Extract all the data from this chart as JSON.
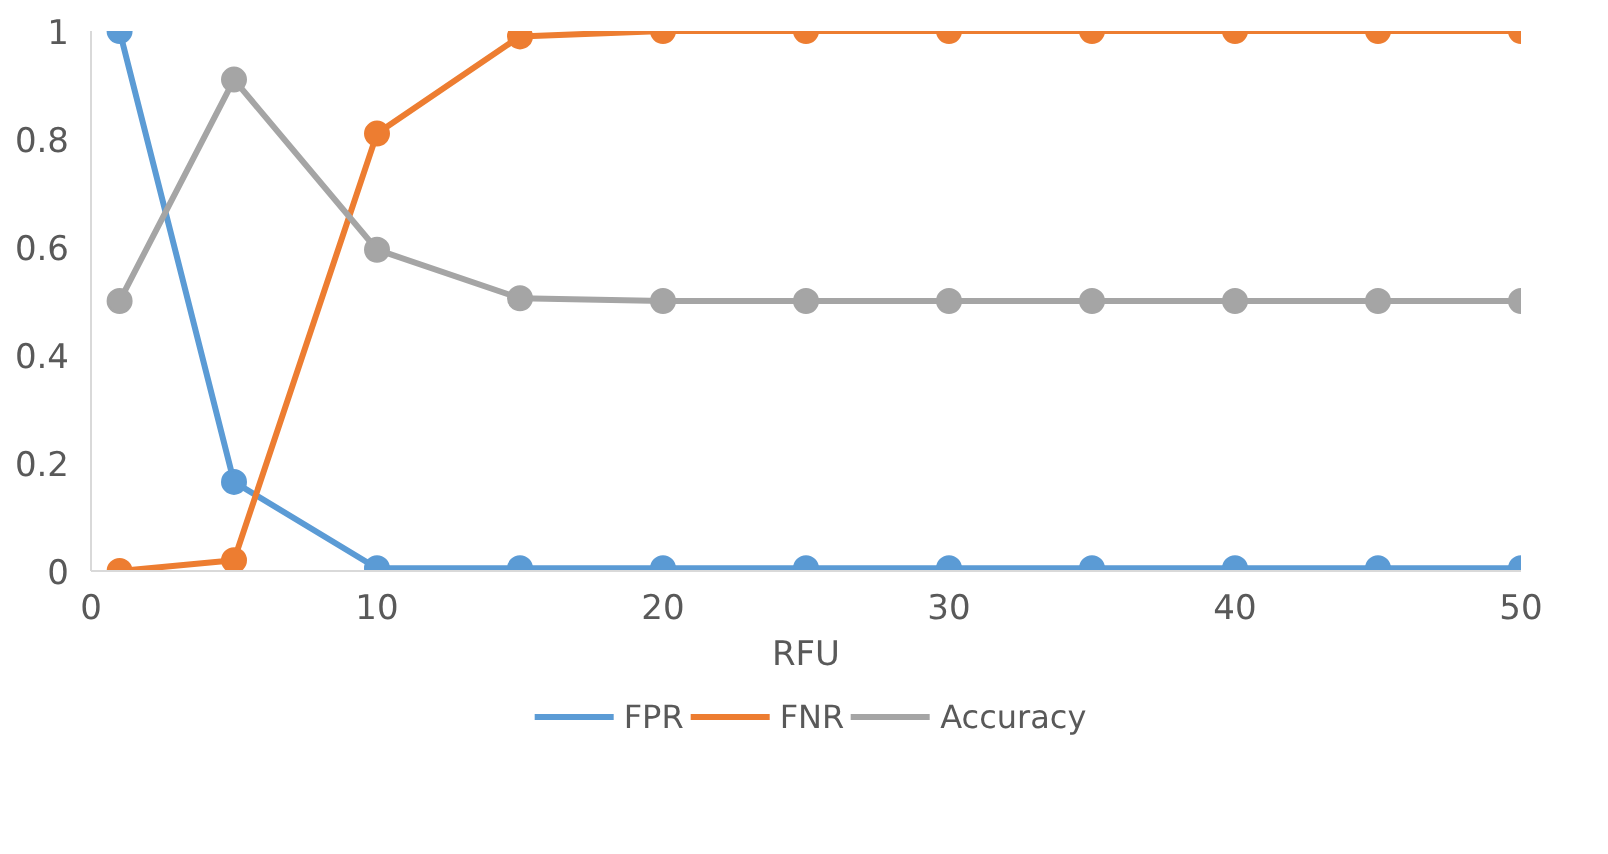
{
  "chart_data": {
    "type": "line",
    "xlabel": "RFU",
    "x": [
      1,
      5,
      10,
      15,
      20,
      25,
      30,
      35,
      40,
      45,
      50
    ],
    "series": [
      {
        "name": "FPR",
        "color": "#5b9bd5",
        "values": [
          1,
          0.165,
          0.005,
          0.005,
          0.005,
          0.005,
          0.005,
          0.005,
          0.005,
          0.005,
          0.005
        ]
      },
      {
        "name": "FNR",
        "color": "#ed7d31",
        "values": [
          0,
          0.02,
          0.81,
          0.99,
          1,
          1,
          1,
          1,
          1,
          1,
          1
        ]
      },
      {
        "name": "Accuracy",
        "color": "#a5a5a5",
        "values": [
          0.5,
          0.91,
          0.595,
          0.505,
          0.5,
          0.5,
          0.5,
          0.5,
          0.5,
          0.5,
          0.5
        ]
      }
    ],
    "xlim": [
      0,
      50
    ],
    "xticks": [
      0,
      10,
      20,
      30,
      40,
      50
    ],
    "ylim": [
      0,
      1
    ],
    "yticks": [
      0,
      0.2,
      0.4,
      0.6,
      0.8,
      1
    ],
    "grid": false,
    "legend": "bottom",
    "marker": "circle",
    "line_style": "solid"
  }
}
